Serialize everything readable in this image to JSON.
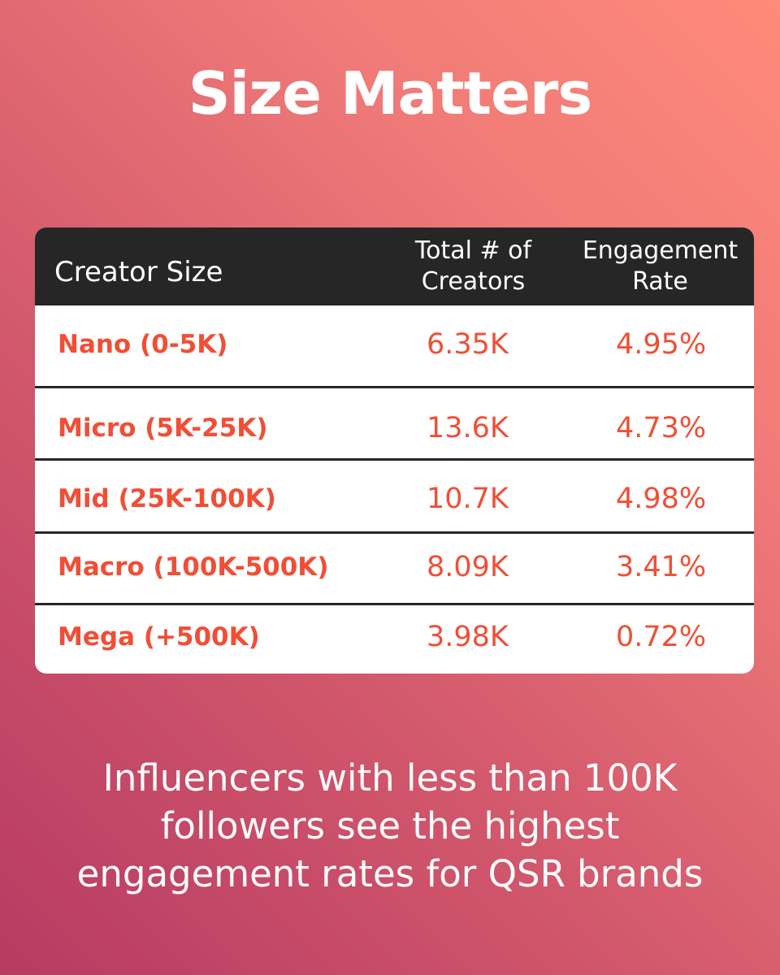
{
  "title": "Size Matters",
  "table": {
    "headers": {
      "creator_size": "Creator Size",
      "total_creators": "Total # of\nCreators",
      "engagement_rate": "Engagement\nRate"
    },
    "rows": [
      {
        "creator_size": "Nano (0-5K)",
        "total_creators": "6.35K",
        "engagement_rate": "4.95%"
      },
      {
        "creator_size": "Micro (5K-25K)",
        "total_creators": "13.6K",
        "engagement_rate": "4.73%"
      },
      {
        "creator_size": "Mid (25K-100K)",
        "total_creators": "10.7K",
        "engagement_rate": "4.98%"
      },
      {
        "creator_size": "Macro (100K-500K)",
        "total_creators": "8.09K",
        "engagement_rate": "3.41%"
      },
      {
        "creator_size": "Mega (+500K)",
        "total_creators": "3.98K",
        "engagement_rate": "0.72%"
      }
    ]
  },
  "caption": {
    "line1": "Influencers with less than 100K",
    "line2": "followers see the highest",
    "line3": "engagement rates for QSR brands"
  }
}
